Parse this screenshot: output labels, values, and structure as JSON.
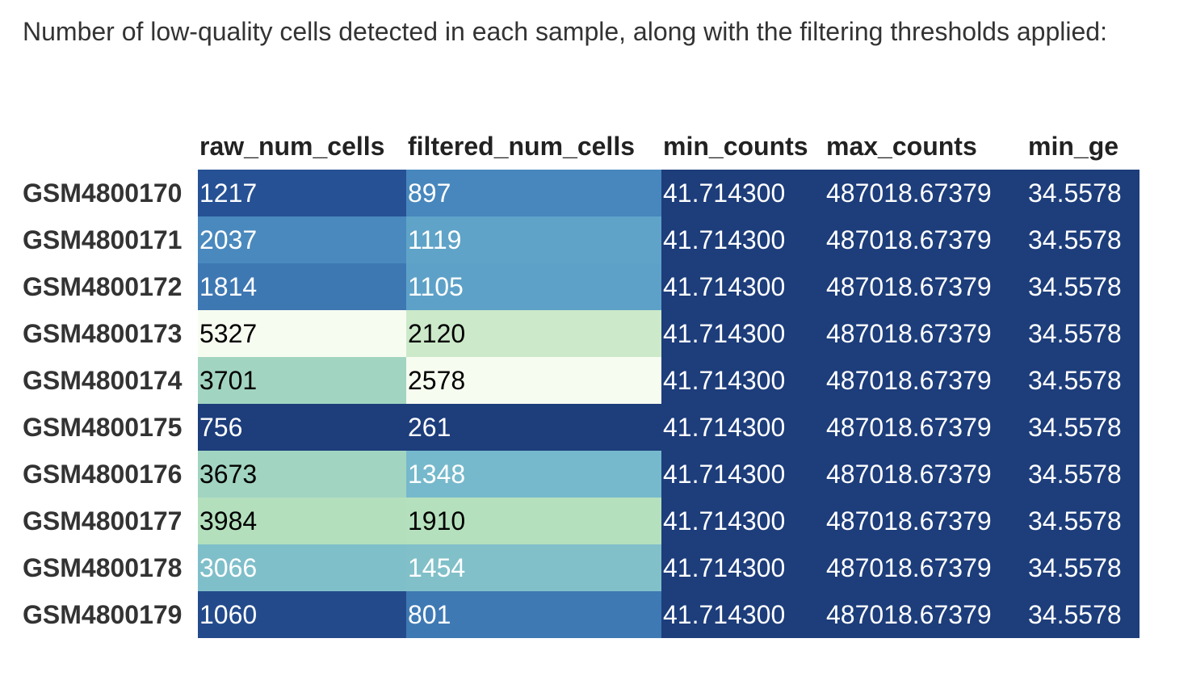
{
  "caption": "Number of low-quality cells detected in each sample, along with the filtering thresholds applied:",
  "chart_data": {
    "type": "table",
    "columns": [
      "raw_num_cells",
      "filtered_num_cells",
      "min_counts",
      "max_counts",
      "min_ge"
    ],
    "rows": [
      {
        "sample": "GSM4800170",
        "raw_num_cells": "1217",
        "filtered_num_cells": "897",
        "min_counts": "41.714300",
        "max_counts": "487018.67379",
        "min_genes": "34.5578"
      },
      {
        "sample": "GSM4800171",
        "raw_num_cells": "2037",
        "filtered_num_cells": "1119",
        "min_counts": "41.714300",
        "max_counts": "487018.67379",
        "min_genes": "34.5578"
      },
      {
        "sample": "GSM4800172",
        "raw_num_cells": "1814",
        "filtered_num_cells": "1105",
        "min_counts": "41.714300",
        "max_counts": "487018.67379",
        "min_genes": "34.5578"
      },
      {
        "sample": "GSM4800173",
        "raw_num_cells": "5327",
        "filtered_num_cells": "2120",
        "min_counts": "41.714300",
        "max_counts": "487018.67379",
        "min_genes": "34.5578"
      },
      {
        "sample": "GSM4800174",
        "raw_num_cells": "3701",
        "filtered_num_cells": "2578",
        "min_counts": "41.714300",
        "max_counts": "487018.67379",
        "min_genes": "34.5578"
      },
      {
        "sample": "GSM4800175",
        "raw_num_cells": "756",
        "filtered_num_cells": "261",
        "min_counts": "41.714300",
        "max_counts": "487018.67379",
        "min_genes": "34.5578"
      },
      {
        "sample": "GSM4800176",
        "raw_num_cells": "3673",
        "filtered_num_cells": "1348",
        "min_counts": "41.714300",
        "max_counts": "487018.67379",
        "min_genes": "34.5578"
      },
      {
        "sample": "GSM4800177",
        "raw_num_cells": "3984",
        "filtered_num_cells": "1910",
        "min_counts": "41.714300",
        "max_counts": "487018.67379",
        "min_genes": "34.5578"
      },
      {
        "sample": "GSM4800178",
        "raw_num_cells": "3066",
        "filtered_num_cells": "1454",
        "min_counts": "41.714300",
        "max_counts": "487018.67379",
        "min_genes": "34.5578"
      },
      {
        "sample": "GSM4800179",
        "raw_num_cells": "1060",
        "filtered_num_cells": "801",
        "min_counts": "41.714300",
        "max_counts": "487018.67379",
        "min_genes": "34.5578"
      }
    ],
    "colormap": [
      "#1d3d7b",
      "#2a5aa0",
      "#4a8bbf",
      "#6db3cf",
      "#8ec9c5",
      "#b6e0bd",
      "#d9efd1",
      "#f7fcf0"
    ],
    "dark_text_color": "#000000",
    "light_text_color": "#ffffff"
  }
}
